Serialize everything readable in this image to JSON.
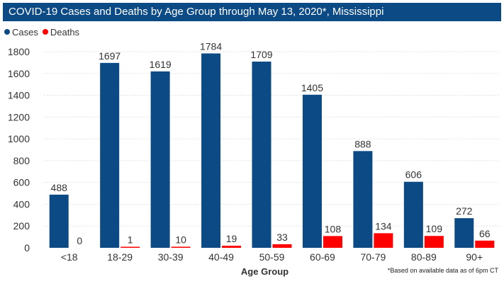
{
  "title": "COVID-19 Cases and Deaths by Age Group through May 13, 2020*, Mississippi",
  "footnote": "*Based on available data as of 6pm CT",
  "colors": {
    "title_bg": "#0b4a85",
    "cases": "#0b4a85",
    "deaths": "#ff0000",
    "grid": "#e3e3e3",
    "text": "#333333"
  },
  "chart_data": {
    "type": "bar",
    "title": "COVID-19 Cases and Deaths by Age Group through May 13, 2020*, Mississippi",
    "xlabel": "Age Group",
    "ylabel": "",
    "categories": [
      "<18",
      "18-29",
      "30-39",
      "40-49",
      "50-59",
      "60-69",
      "70-79",
      "80-89",
      "90+"
    ],
    "series": [
      {
        "name": "Cases",
        "color": "#0b4a85",
        "values": [
          488,
          1697,
          1619,
          1784,
          1709,
          1405,
          888,
          606,
          272
        ]
      },
      {
        "name": "Deaths",
        "color": "#ff0000",
        "values": [
          0,
          1,
          10,
          19,
          33,
          108,
          134,
          109,
          66
        ]
      }
    ],
    "ylim": [
      0,
      1800
    ],
    "yticks": [
      0,
      200,
      400,
      600,
      800,
      1000,
      1200,
      1400,
      1600,
      1800
    ],
    "grid": true,
    "legend_position": "top-left",
    "data_labels": true
  }
}
